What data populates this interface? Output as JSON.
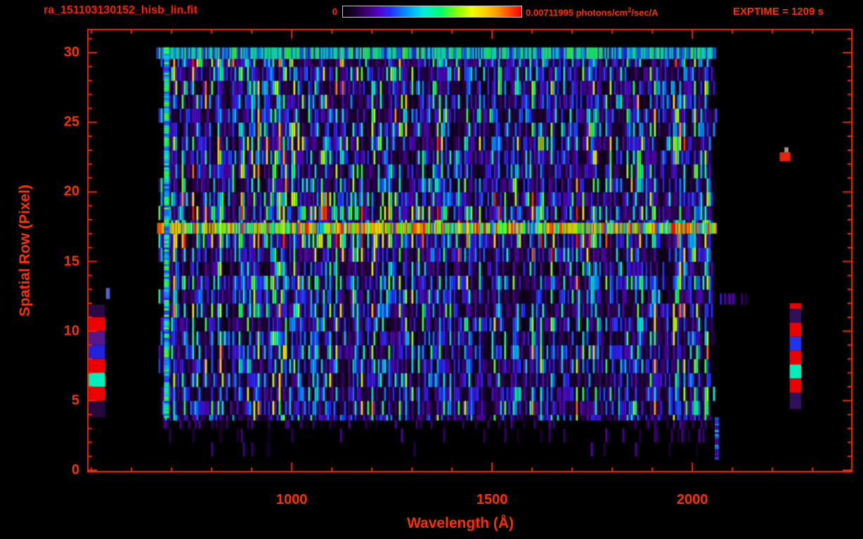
{
  "header": {
    "filename": "ra_151103130152_hisb_lin.fit",
    "exptime_label": "EXPTIME = 1209 s",
    "colorbar": {
      "min_label": "0",
      "max_label_prefix": "0.00711995 photons/cm",
      "max_label_sup": "2",
      "max_label_suffix": "/sec/A"
    }
  },
  "axes": {
    "x_label": "Wavelength (Å)",
    "y_label": "Spatial Row (Pixel)",
    "x_ticks": [
      1000,
      1500,
      2000
    ],
    "y_ticks": [
      0,
      5,
      10,
      15,
      20,
      25,
      30
    ]
  },
  "colors": {
    "background": "#000000",
    "frame": "#f52600",
    "text": "#ff2d00",
    "colorbar_border": "#cccccc"
  },
  "chart_data": {
    "type": "heatmap",
    "title": "ra_151103130152_hisb_lin.fit",
    "xlabel": "Wavelength (Å)",
    "ylabel": "Spatial Row (Pixel)",
    "x_range": [
      491,
      2398
    ],
    "y_range": [
      -0.1,
      31.67
    ],
    "colorbar_range": [
      0,
      0.00711995
    ],
    "colorbar_units": "photons/cm2/sec/A",
    "exptime_seconds": 1209,
    "seed": 20151103,
    "noise_region": {
      "x": [
        662,
        2058
      ],
      "y": [
        3.6,
        29.55
      ]
    },
    "row_profile": [
      0,
      0,
      0,
      0.24,
      0.3,
      0.26,
      0.27,
      0.26,
      0.3,
      0.26,
      0.28,
      0.3,
      0.28,
      0.3,
      0.27,
      0.32,
      0.4,
      0.35,
      0.38,
      0.34,
      0.3,
      0.29,
      0.31,
      0.34,
      0.29,
      0.31,
      0.29,
      0.31,
      0.3,
      0.34,
      0
    ],
    "sparse_rows": [
      {
        "y": [
          3.0,
          3.6
        ],
        "prob": 0.22
      },
      {
        "y": [
          2.0,
          3.0
        ],
        "prob": 0.08
      },
      {
        "y": [
          1.0,
          2.0
        ],
        "prob": 0.05
      }
    ],
    "features": [
      {
        "name": "emission-trace-row-17",
        "type": "bright_row",
        "x": [
          664,
          2060
        ],
        "y": [
          17.0,
          17.78
        ],
        "val": [
          0.3,
          1.0
        ]
      },
      {
        "name": "bright-top-row-30",
        "type": "bright_row",
        "x": [
          662,
          2057
        ],
        "y": [
          29.55,
          30.38
        ],
        "val": [
          0.22,
          0.62
        ]
      },
      {
        "name": "left-edge-bright-column",
        "type": "bright_column",
        "x": [
          681,
          694
        ],
        "y": [
          3.8,
          30.38
        ],
        "val": [
          0.28,
          0.62
        ]
      },
      {
        "name": "right-edge-column",
        "type": "bright_column",
        "x": [
          2056,
          2066
        ],
        "y": [
          0.8,
          3.8
        ],
        "val": [
          0.15,
          0.45
        ]
      },
      {
        "name": "faint-right-extension-row-12",
        "type": "noise_row",
        "x": [
          2058,
          2140
        ],
        "y": [
          11.9,
          12.7
        ],
        "base": 0.14
      }
    ],
    "side_blocks": [
      {
        "side": "left",
        "x": [
          493,
          534
        ],
        "y": [
          11.0,
          11.9
        ],
        "color": "#2a0a45"
      },
      {
        "side": "left",
        "x": [
          493,
          534
        ],
        "y": [
          10.0,
          11.0
        ],
        "color": "#ee0000"
      },
      {
        "side": "left",
        "x": [
          493,
          534
        ],
        "y": [
          9.0,
          10.0
        ],
        "color": "#55188a"
      },
      {
        "side": "left",
        "x": [
          493,
          534
        ],
        "y": [
          8.0,
          9.0
        ],
        "color": "#2222dd"
      },
      {
        "side": "left",
        "x": [
          493,
          534
        ],
        "y": [
          7.0,
          8.0
        ],
        "color": "#ee0000"
      },
      {
        "side": "left",
        "x": [
          493,
          534
        ],
        "y": [
          6.0,
          7.0
        ],
        "color": "#00eebb"
      },
      {
        "side": "left",
        "x": [
          493,
          534
        ],
        "y": [
          5.0,
          6.0
        ],
        "color": "#ee0000"
      },
      {
        "side": "left",
        "x": [
          493,
          534
        ],
        "y": [
          3.8,
          5.0
        ],
        "color": "#26083d"
      },
      {
        "side": "left",
        "x": [
          536,
          546
        ],
        "y": [
          12.3,
          13.1
        ],
        "color": "#4a66cc"
      },
      {
        "side": "right",
        "x": [
          2243,
          2272
        ],
        "y": [
          11.6,
          12.0
        ],
        "color": "#ee0000"
      },
      {
        "side": "right",
        "x": [
          2243,
          2272
        ],
        "y": [
          10.6,
          11.6
        ],
        "color": "#30105a"
      },
      {
        "side": "right",
        "x": [
          2243,
          2272
        ],
        "y": [
          9.6,
          10.6
        ],
        "color": "#ee0000"
      },
      {
        "side": "right",
        "x": [
          2243,
          2272
        ],
        "y": [
          8.6,
          9.6
        ],
        "color": "#2233ee"
      },
      {
        "side": "right",
        "x": [
          2243,
          2272
        ],
        "y": [
          7.6,
          8.6
        ],
        "color": "#ee0000"
      },
      {
        "side": "right",
        "x": [
          2243,
          2272
        ],
        "y": [
          6.6,
          7.6
        ],
        "color": "#00eebb"
      },
      {
        "side": "right",
        "x": [
          2243,
          2272
        ],
        "y": [
          5.6,
          6.6
        ],
        "color": "#ee0000"
      },
      {
        "side": "right",
        "x": [
          2243,
          2272
        ],
        "y": [
          4.4,
          5.6
        ],
        "color": "#30105a"
      },
      {
        "side": "right",
        "x": [
          2218,
          2245
        ],
        "y": [
          22.2,
          22.85
        ],
        "color": "#ee2200"
      },
      {
        "side": "right",
        "x": [
          2230,
          2240
        ],
        "y": [
          22.85,
          23.2
        ],
        "color": "#999999"
      }
    ]
  }
}
